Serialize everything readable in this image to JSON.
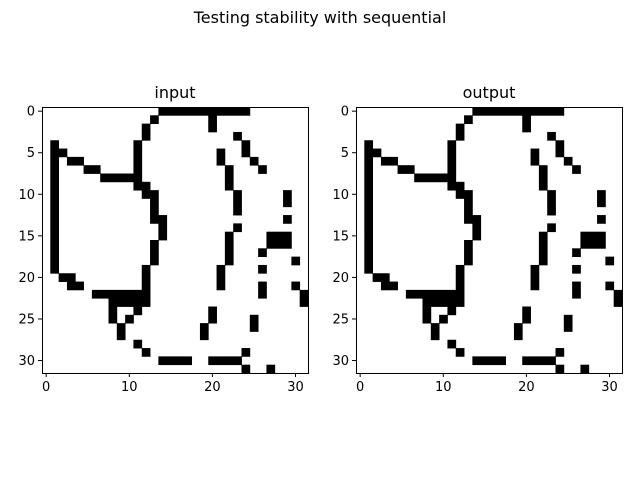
{
  "figure": {
    "title": "Testing stability with sequential"
  },
  "chart_data": [
    {
      "type": "heatmap",
      "title": "input",
      "colormap": "binary",
      "colors": {
        "on": "#000000",
        "off": "#ffffff"
      },
      "xlim": [
        -0.5,
        31.5
      ],
      "ylim": [
        31.5,
        -0.5
      ],
      "x_ticks": [
        0,
        10,
        20,
        30
      ],
      "y_ticks": [
        0,
        5,
        10,
        15,
        20,
        25,
        30
      ],
      "grid": false,
      "rows": [
        "00000000000000111111111110000000",
        "00000000000001000000100000000000",
        "00000000000010000000100000000000",
        "00000000000010000000000100000000",
        "01000000000100000000000010000000",
        "01100000000100000000010010000000",
        "01011000000100000000010001000000",
        "01000110000100000000001000100000",
        "01000001111100000000001000000000",
        "01000000000110000000001000000000",
        "01000000000011000000000100000100",
        "01000000000001000000000100000100",
        "01000000000001000000000100000000",
        "01000000000001100000000000000100",
        "01000000000000100000000100000000",
        "01000000000000100000001000011100",
        "01000000000001000000001000011100",
        "01000000000001000000001000100000",
        "01000000000001000000001000000010",
        "01000000000010000000010000100000",
        "00110000000010000000010000000000",
        "00011000000010000000010000100010",
        "00000011111110000000000000100001",
        "00000000111110000000000000000001",
        "00000000100100000000100000000000",
        "00000000101000000000100001000000",
        "00000000010000000001000001000000",
        "00000000010000000001000000000000",
        "00000000000100000000000000000000",
        "00000000000010000000000010000000",
        "00000000000000111100111100000000",
        "00000000000000000000000010010000"
      ]
    },
    {
      "type": "heatmap",
      "title": "output",
      "colormap": "binary",
      "colors": {
        "on": "#000000",
        "off": "#ffffff"
      },
      "xlim": [
        -0.5,
        31.5
      ],
      "ylim": [
        31.5,
        -0.5
      ],
      "x_ticks": [
        0,
        10,
        20,
        30
      ],
      "y_ticks": [
        0,
        5,
        10,
        15,
        20,
        25,
        30
      ],
      "grid": false,
      "rows": [
        "00000000000000111111111110000000",
        "00000000000001000000100000000000",
        "00000000000010000000100000000000",
        "00000000000010000000000100000000",
        "01000000000100000000000010000000",
        "01100000000100000000010010000000",
        "01011000000100000000010001000000",
        "01000110000100000000001000100000",
        "01000001111100000000001000000000",
        "01000000000110000000001000000000",
        "01000000000011000000000100000100",
        "01000000000001000000000100000100",
        "01000000000001000000000100000000",
        "01000000000001100000000000000100",
        "01000000000000100000000100000000",
        "01000000000000100000001000011100",
        "01000000000001000000001000011100",
        "01000000000001000000001000100000",
        "01000000000001000000001000000010",
        "01000000000010000000010000100000",
        "00110000000010000000010000000000",
        "00011000000010000000010000100010",
        "00000011111110000000000000100001",
        "00000000111110000000000000000001",
        "00000000100100000000100000000000",
        "00000000101000000000100001000000",
        "00000000010000000001000001000000",
        "00000000010000000001000000000000",
        "00000000000100000000000000000000",
        "00000000000010000000000010000000",
        "00000000000000111100111100000000",
        "00000000000000000000000010010000"
      ]
    }
  ]
}
